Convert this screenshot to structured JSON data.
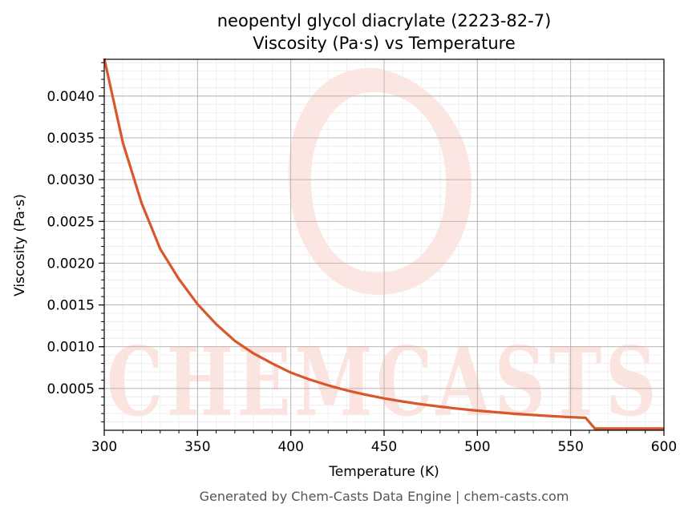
{
  "chart_data": {
    "type": "line",
    "title": "neopentyl glycol diacrylate (2223-82-7)",
    "subtitle": "Viscosity (Pa·s) vs Temperature",
    "xlabel": "Temperature (K)",
    "ylabel": "Viscosity (Pa·s)",
    "xlim": [
      300,
      600
    ],
    "ylim": [
      0.0,
      0.00444
    ],
    "x_ticks": [
      300,
      350,
      400,
      450,
      500,
      550,
      600
    ],
    "x_tick_labels": [
      "300",
      "350",
      "400",
      "450",
      "500",
      "550",
      "600"
    ],
    "y_ticks": [
      0.0005,
      0.001,
      0.0015,
      0.002,
      0.0025,
      0.003,
      0.0035,
      0.004
    ],
    "y_tick_labels": [
      "0.0005",
      "0.0010",
      "0.0015",
      "0.0020",
      "0.0025",
      "0.0030",
      "0.0035",
      "0.0040"
    ],
    "grid": true,
    "line_color": "#d9572b",
    "series": [
      {
        "x": [
          300,
          310,
          320,
          330,
          340,
          350,
          360,
          370,
          380,
          390,
          400,
          410,
          420,
          430,
          440,
          450,
          460,
          470,
          480,
          490,
          500,
          510,
          520,
          530,
          540,
          550,
          558,
          563,
          600
        ],
        "values": [
          0.00445,
          0.00344,
          0.00272,
          0.00217,
          0.00181,
          0.00151,
          0.00127,
          0.00107,
          0.00092,
          0.0008,
          0.00069,
          0.000608,
          0.000538,
          0.000477,
          0.000426,
          0.000382,
          0.000344,
          0.000311,
          0.000283,
          0.000257,
          0.000235,
          0.000216,
          0.000198,
          0.000183,
          0.000169,
          0.000157,
          0.00015,
          2e-05,
          2e-05
        ]
      }
    ]
  },
  "watermark": {
    "text": "CHEMCASTS",
    "color": "#fde3de"
  },
  "footer": "Generated by Chem-Casts Data Engine | chem-casts.com"
}
